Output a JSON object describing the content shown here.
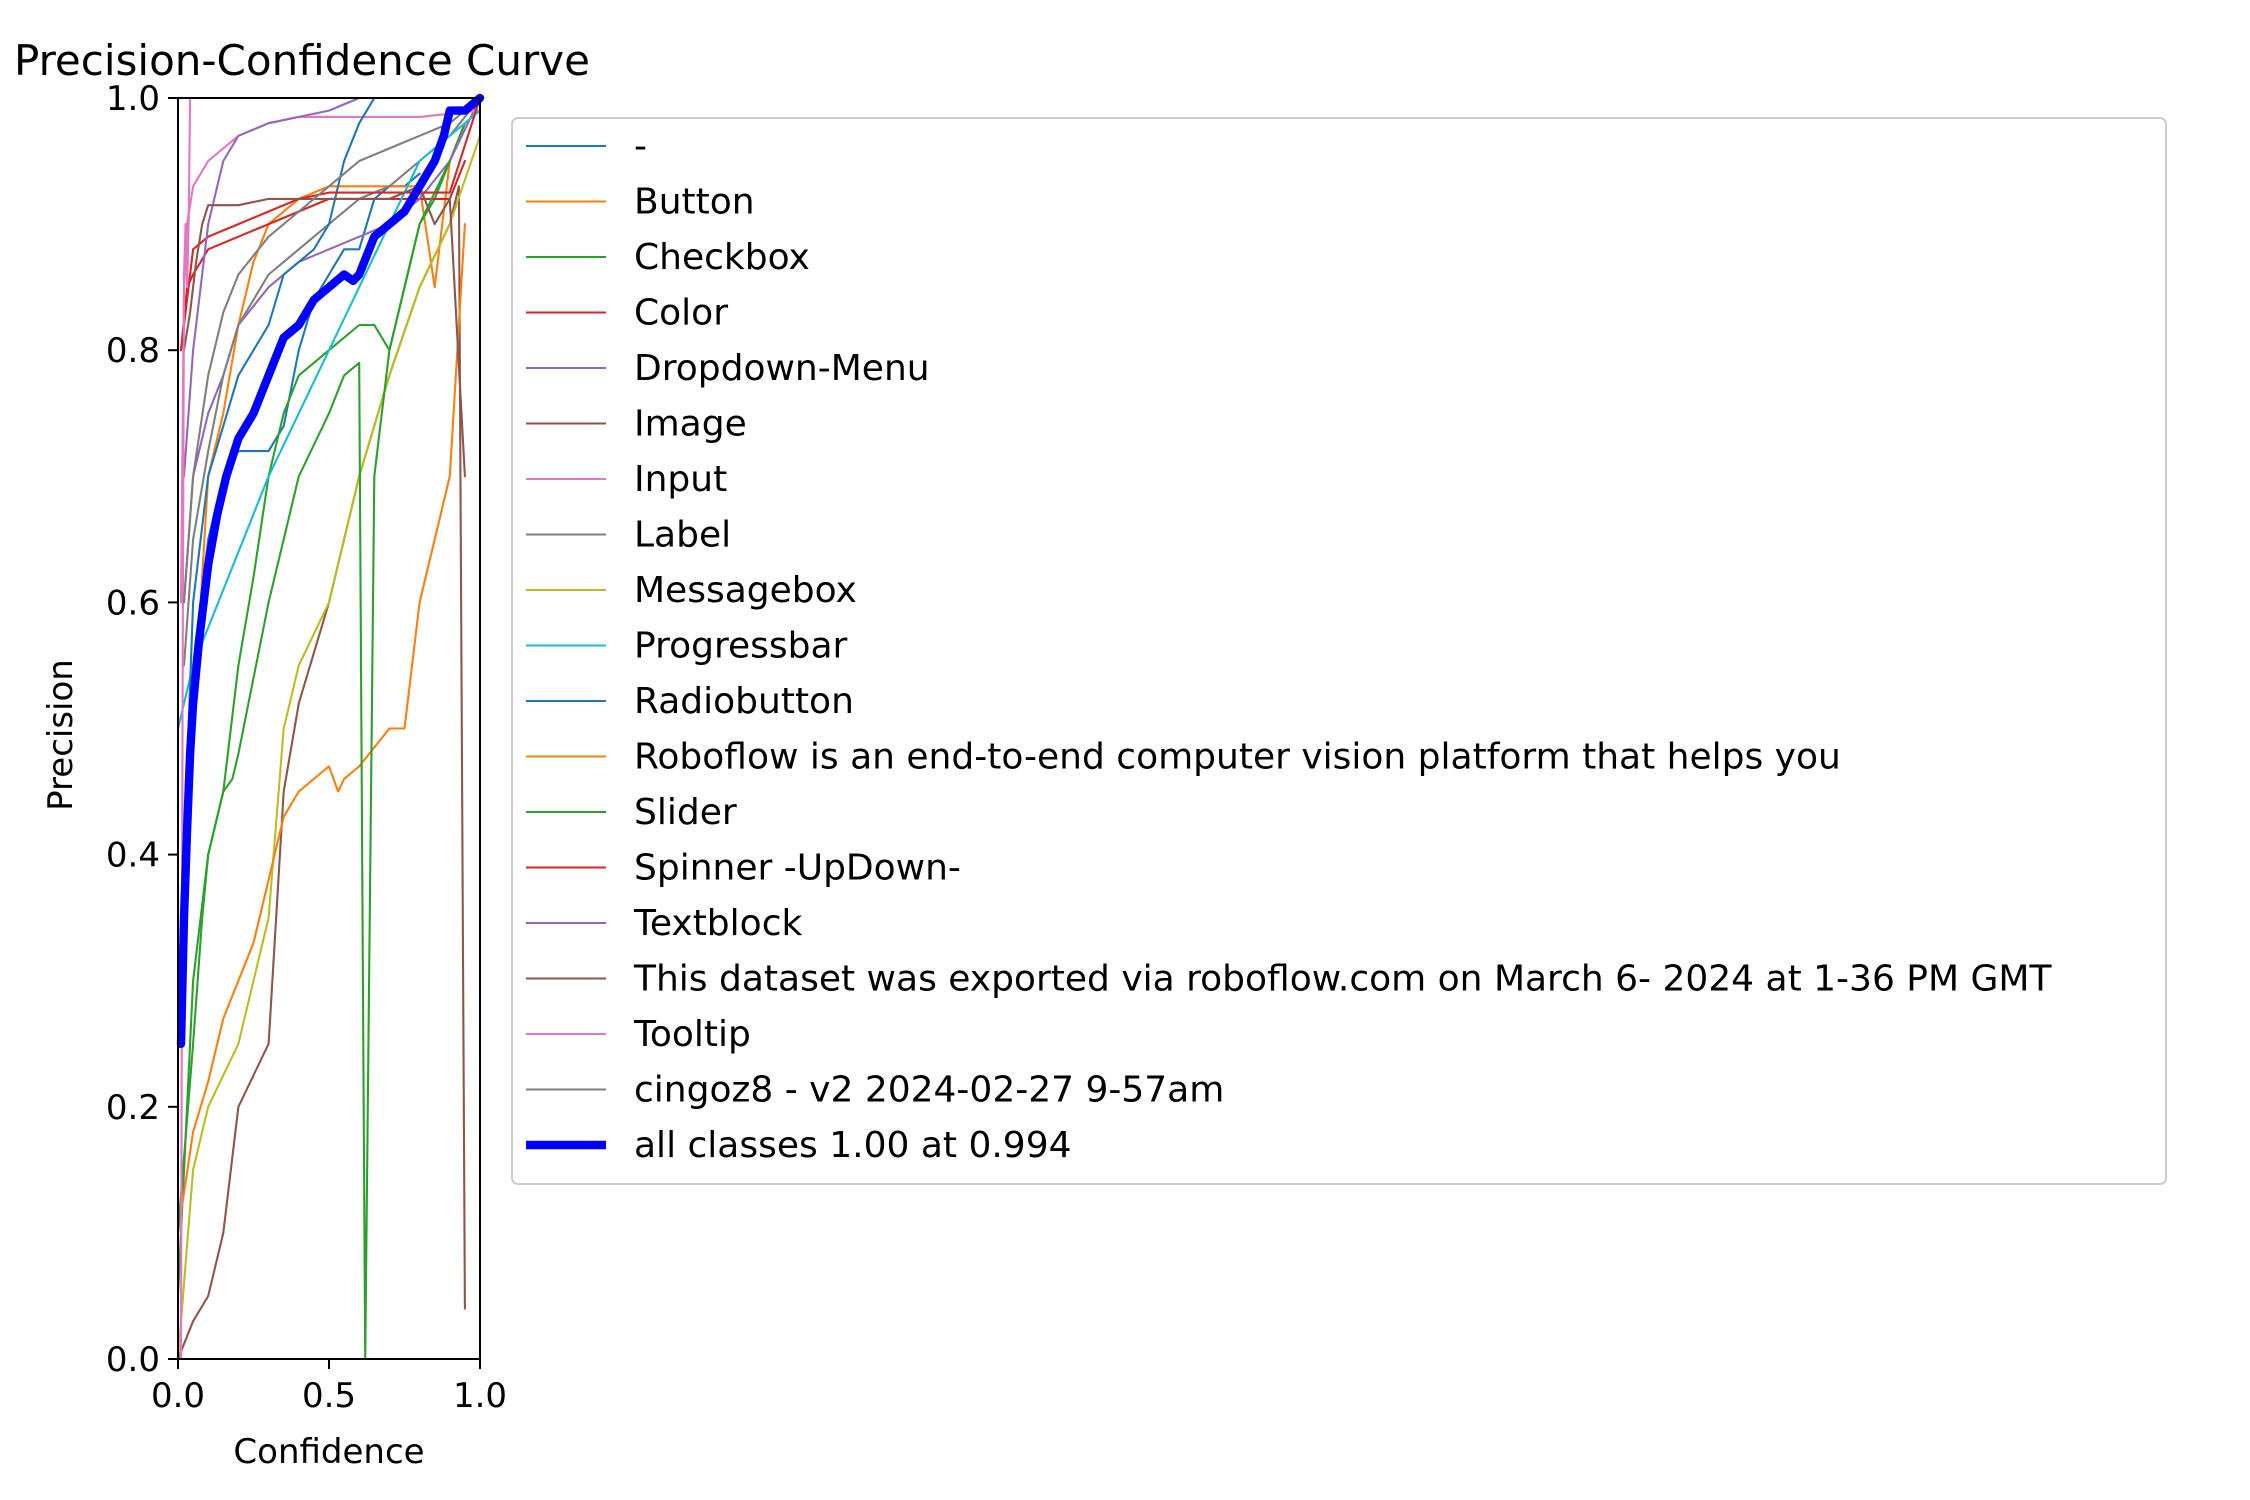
{
  "chart_data": {
    "type": "line",
    "title": "Precision-Confidence Curve",
    "xlabel": "Confidence",
    "ylabel": "Precision",
    "xlim": [
      0,
      1
    ],
    "ylim": [
      0,
      1
    ],
    "x_ticks": [
      "0.0",
      "0.5",
      "1.0"
    ],
    "y_ticks": [
      "0.0",
      "0.2",
      "0.4",
      "0.6",
      "0.8",
      "1.0"
    ],
    "grid": false,
    "legend_position": "right, outside plot",
    "series": [
      {
        "name": "-",
        "color": "#1f77b4",
        "width": 1.5,
        "points": [
          [
            0.02,
            0.35
          ],
          [
            0.05,
            0.55
          ],
          [
            0.1,
            0.65
          ],
          [
            0.15,
            0.7
          ],
          [
            0.2,
            0.72
          ],
          [
            0.3,
            0.72
          ],
          [
            0.35,
            0.74
          ],
          [
            0.4,
            0.8
          ],
          [
            0.45,
            0.84
          ],
          [
            0.5,
            0.86
          ],
          [
            0.55,
            0.88
          ],
          [
            0.6,
            0.88
          ],
          [
            0.65,
            0.92
          ],
          [
            0.7,
            0.93
          ],
          [
            0.75,
            0.93
          ],
          [
            0.8,
            0.94
          ]
        ]
      },
      {
        "name": "Button",
        "color": "#ff7f0e",
        "width": 1.5,
        "points": [
          [
            0.02,
            0.4
          ],
          [
            0.05,
            0.5
          ],
          [
            0.1,
            0.7
          ],
          [
            0.15,
            0.75
          ],
          [
            0.2,
            0.82
          ],
          [
            0.25,
            0.87
          ],
          [
            0.3,
            0.9
          ],
          [
            0.4,
            0.92
          ],
          [
            0.5,
            0.93
          ],
          [
            0.6,
            0.93
          ],
          [
            0.7,
            0.93
          ],
          [
            0.8,
            0.93
          ],
          [
            0.85,
            0.85
          ],
          [
            0.9,
            0.95
          ],
          [
            0.95,
            0.98
          ]
        ]
      },
      {
        "name": "Checkbox",
        "color": "#2ca02c",
        "width": 1.5,
        "points": [
          [
            0.0,
            0.05
          ],
          [
            0.05,
            0.3
          ],
          [
            0.1,
            0.4
          ],
          [
            0.15,
            0.45
          ],
          [
            0.2,
            0.55
          ],
          [
            0.25,
            0.62
          ],
          [
            0.3,
            0.7
          ],
          [
            0.35,
            0.75
          ],
          [
            0.4,
            0.78
          ],
          [
            0.5,
            0.8
          ],
          [
            0.6,
            0.82
          ],
          [
            0.65,
            0.82
          ],
          [
            0.7,
            0.8
          ],
          [
            0.75,
            0.85
          ],
          [
            0.8,
            0.9
          ],
          [
            0.85,
            0.92
          ],
          [
            0.9,
            0.95
          ],
          [
            0.95,
            0.98
          ]
        ]
      },
      {
        "name": "Color",
        "color": "#d62728",
        "width": 1.5,
        "points": [
          [
            0.01,
            0.8
          ],
          [
            0.03,
            0.85
          ],
          [
            0.05,
            0.86
          ],
          [
            0.1,
            0.88
          ],
          [
            0.2,
            0.89
          ],
          [
            0.3,
            0.9
          ],
          [
            0.4,
            0.91
          ],
          [
            0.5,
            0.92
          ],
          [
            0.6,
            0.92
          ],
          [
            0.7,
            0.92
          ],
          [
            0.8,
            0.92
          ],
          [
            0.9,
            0.92
          ],
          [
            0.95,
            0.95
          ]
        ]
      },
      {
        "name": "Dropdown-Menu",
        "color": "#9467bd",
        "width": 1.5,
        "points": [
          [
            0.02,
            0.6
          ],
          [
            0.05,
            0.7
          ],
          [
            0.1,
            0.75
          ],
          [
            0.15,
            0.78
          ],
          [
            0.2,
            0.82
          ],
          [
            0.3,
            0.85
          ],
          [
            0.4,
            0.87
          ],
          [
            0.5,
            0.88
          ],
          [
            0.6,
            0.89
          ],
          [
            0.7,
            0.9
          ],
          [
            0.8,
            0.92
          ],
          [
            0.9,
            0.95
          ],
          [
            1.0,
            1.0
          ]
        ]
      },
      {
        "name": "Image",
        "color": "#8c564b",
        "width": 1.5,
        "points": [
          [
            0.0,
            0.0
          ],
          [
            0.05,
            0.03
          ],
          [
            0.1,
            0.05
          ],
          [
            0.15,
            0.1
          ],
          [
            0.2,
            0.2
          ],
          [
            0.3,
            0.25
          ],
          [
            0.35,
            0.45
          ],
          [
            0.4,
            0.52
          ],
          [
            0.5,
            0.6
          ],
          [
            0.6,
            0.7
          ],
          [
            0.7,
            0.78
          ],
          [
            0.8,
            0.85
          ],
          [
            0.9,
            0.9
          ],
          [
            0.93,
            0.93
          ],
          [
            0.95,
            0.04
          ]
        ]
      },
      {
        "name": "Input",
        "color": "#e377c2",
        "width": 1.5,
        "points": [
          [
            0.01,
            0.6
          ],
          [
            0.02,
            0.85
          ],
          [
            0.03,
            0.9
          ],
          [
            0.05,
            0.93
          ],
          [
            0.1,
            0.95
          ],
          [
            0.2,
            0.97
          ],
          [
            0.3,
            0.98
          ],
          [
            0.4,
            0.985
          ],
          [
            0.5,
            0.985
          ],
          [
            0.6,
            0.985
          ],
          [
            0.8,
            0.985
          ],
          [
            1.0,
            0.99
          ]
        ]
      },
      {
        "name": "Label",
        "color": "#7f7f7f",
        "width": 1.5,
        "points": [
          [
            0.02,
            0.55
          ],
          [
            0.05,
            0.65
          ],
          [
            0.1,
            0.72
          ],
          [
            0.15,
            0.78
          ],
          [
            0.2,
            0.82
          ],
          [
            0.3,
            0.86
          ],
          [
            0.4,
            0.88
          ],
          [
            0.5,
            0.9
          ],
          [
            0.6,
            0.92
          ],
          [
            0.7,
            0.93
          ],
          [
            0.8,
            0.95
          ],
          [
            0.9,
            0.97
          ],
          [
            1.0,
            1.0
          ]
        ]
      },
      {
        "name": "Messagebox",
        "color": "#bcbd22",
        "width": 1.5,
        "points": [
          [
            0.0,
            0.0
          ],
          [
            0.05,
            0.15
          ],
          [
            0.1,
            0.2
          ],
          [
            0.2,
            0.25
          ],
          [
            0.3,
            0.35
          ],
          [
            0.35,
            0.5
          ],
          [
            0.4,
            0.55
          ],
          [
            0.5,
            0.6
          ],
          [
            0.6,
            0.7
          ],
          [
            0.7,
            0.78
          ],
          [
            0.8,
            0.85
          ],
          [
            0.9,
            0.9
          ],
          [
            1.0,
            0.97
          ]
        ]
      },
      {
        "name": "Progressbar",
        "color": "#17becf",
        "width": 1.5,
        "points": [
          [
            0.0,
            0.5
          ],
          [
            0.05,
            0.55
          ],
          [
            0.1,
            0.58
          ],
          [
            0.2,
            0.64
          ],
          [
            0.3,
            0.7
          ],
          [
            0.4,
            0.75
          ],
          [
            0.5,
            0.8
          ],
          [
            0.6,
            0.85
          ],
          [
            0.7,
            0.9
          ],
          [
            0.8,
            0.95
          ],
          [
            0.9,
            0.97
          ],
          [
            1.0,
            0.99
          ]
        ]
      },
      {
        "name": "Radiobutton",
        "color": "#1f77b4",
        "width": 1.5,
        "points": [
          [
            0.02,
            0.4
          ],
          [
            0.05,
            0.6
          ],
          [
            0.1,
            0.7
          ],
          [
            0.15,
            0.74
          ],
          [
            0.2,
            0.78
          ],
          [
            0.25,
            0.8
          ],
          [
            0.3,
            0.82
          ],
          [
            0.35,
            0.86
          ],
          [
            0.4,
            0.87
          ],
          [
            0.45,
            0.88
          ],
          [
            0.5,
            0.9
          ],
          [
            0.55,
            0.95
          ],
          [
            0.6,
            0.98
          ],
          [
            0.65,
            1.0
          ]
        ]
      },
      {
        "name": "Roboflow is an end-to-end computer vision platform that helps you",
        "color": "#ff7f0e",
        "width": 1.5,
        "points": [
          [
            0.0,
            0.1
          ],
          [
            0.05,
            0.18
          ],
          [
            0.1,
            0.22
          ],
          [
            0.15,
            0.27
          ],
          [
            0.2,
            0.3
          ],
          [
            0.25,
            0.33
          ],
          [
            0.3,
            0.38
          ],
          [
            0.35,
            0.43
          ],
          [
            0.4,
            0.45
          ],
          [
            0.5,
            0.47
          ],
          [
            0.53,
            0.45
          ],
          [
            0.55,
            0.46
          ],
          [
            0.6,
            0.47
          ],
          [
            0.7,
            0.5
          ],
          [
            0.75,
            0.5
          ],
          [
            0.8,
            0.6
          ],
          [
            0.85,
            0.65
          ],
          [
            0.9,
            0.7
          ],
          [
            0.95,
            0.9
          ]
        ]
      },
      {
        "name": "Slider",
        "color": "#2ca02c",
        "width": 1.5,
        "points": [
          [
            0.0,
            0.1
          ],
          [
            0.05,
            0.25
          ],
          [
            0.08,
            0.35
          ],
          [
            0.1,
            0.4
          ],
          [
            0.15,
            0.45
          ],
          [
            0.18,
            0.46
          ],
          [
            0.2,
            0.48
          ],
          [
            0.3,
            0.6
          ],
          [
            0.4,
            0.7
          ],
          [
            0.5,
            0.75
          ],
          [
            0.55,
            0.78
          ],
          [
            0.6,
            0.79
          ],
          [
            0.62,
            0.0
          ],
          [
            0.65,
            0.7
          ],
          [
            0.7,
            0.8
          ],
          [
            0.75,
            0.85
          ],
          [
            0.8,
            0.9
          ],
          [
            0.9,
            0.95
          ]
        ]
      },
      {
        "name": "Spinner -UpDown-",
        "color": "#d62728",
        "width": 1.5,
        "points": [
          [
            0.01,
            0.8
          ],
          [
            0.05,
            0.88
          ],
          [
            0.1,
            0.89
          ],
          [
            0.2,
            0.9
          ],
          [
            0.3,
            0.91
          ],
          [
            0.4,
            0.92
          ],
          [
            0.5,
            0.925
          ],
          [
            0.6,
            0.925
          ],
          [
            0.7,
            0.925
          ],
          [
            0.8,
            0.925
          ],
          [
            0.9,
            0.925
          ],
          [
            1.0,
            1.0
          ]
        ]
      },
      {
        "name": "Textblock",
        "color": "#9467bd",
        "width": 1.5,
        "points": [
          [
            0.02,
            0.7
          ],
          [
            0.05,
            0.8
          ],
          [
            0.1,
            0.9
          ],
          [
            0.15,
            0.95
          ],
          [
            0.2,
            0.97
          ],
          [
            0.3,
            0.98
          ],
          [
            0.4,
            0.985
          ],
          [
            0.5,
            0.99
          ],
          [
            0.6,
            1.0
          ]
        ]
      },
      {
        "name": "This dataset was exported via roboflow.com on March 6- 2024 at 1-36 PM GMT",
        "color": "#8c564b",
        "width": 1.5,
        "points": [
          [
            0.02,
            0.8
          ],
          [
            0.04,
            0.83
          ],
          [
            0.06,
            0.87
          ],
          [
            0.08,
            0.9
          ],
          [
            0.1,
            0.915
          ],
          [
            0.2,
            0.915
          ],
          [
            0.3,
            0.92
          ],
          [
            0.4,
            0.92
          ],
          [
            0.5,
            0.92
          ],
          [
            0.6,
            0.92
          ],
          [
            0.7,
            0.92
          ],
          [
            0.8,
            0.93
          ],
          [
            0.85,
            0.9
          ],
          [
            0.9,
            0.92
          ],
          [
            0.95,
            0.7
          ]
        ]
      },
      {
        "name": "Tooltip",
        "color": "#e377c2",
        "width": 1.5,
        "points": [
          [
            0.01,
            0.0
          ],
          [
            0.015,
            0.5
          ],
          [
            0.02,
            0.86
          ],
          [
            0.025,
            0.9
          ],
          [
            0.03,
            0.85
          ],
          [
            0.035,
            0.9
          ],
          [
            0.04,
            1.0
          ]
        ]
      },
      {
        "name": "cingoz8 - v2 2024-02-27 9-57am",
        "color": "#7f7f7f",
        "width": 1.5,
        "points": [
          [
            0.02,
            0.6
          ],
          [
            0.05,
            0.7
          ],
          [
            0.1,
            0.78
          ],
          [
            0.15,
            0.83
          ],
          [
            0.2,
            0.86
          ],
          [
            0.3,
            0.89
          ],
          [
            0.4,
            0.91
          ],
          [
            0.5,
            0.93
          ],
          [
            0.6,
            0.95
          ],
          [
            0.7,
            0.96
          ],
          [
            0.8,
            0.97
          ],
          [
            0.9,
            0.98
          ],
          [
            1.0,
            1.0
          ]
        ]
      },
      {
        "name": "all classes 1.00 at 0.994",
        "color": "#0000ff",
        "width": 6,
        "points": [
          [
            0.01,
            0.25
          ],
          [
            0.02,
            0.35
          ],
          [
            0.03,
            0.42
          ],
          [
            0.04,
            0.48
          ],
          [
            0.05,
            0.52
          ],
          [
            0.07,
            0.57
          ],
          [
            0.1,
            0.63
          ],
          [
            0.13,
            0.67
          ],
          [
            0.16,
            0.7
          ],
          [
            0.2,
            0.73
          ],
          [
            0.25,
            0.75
          ],
          [
            0.3,
            0.78
          ],
          [
            0.35,
            0.81
          ],
          [
            0.4,
            0.82
          ],
          [
            0.45,
            0.84
          ],
          [
            0.5,
            0.85
          ],
          [
            0.55,
            0.86
          ],
          [
            0.58,
            0.855
          ],
          [
            0.6,
            0.86
          ],
          [
            0.65,
            0.89
          ],
          [
            0.7,
            0.9
          ],
          [
            0.75,
            0.91
          ],
          [
            0.8,
            0.93
          ],
          [
            0.85,
            0.95
          ],
          [
            0.88,
            0.97
          ],
          [
            0.9,
            0.99
          ],
          [
            0.92,
            0.99
          ],
          [
            0.95,
            0.99
          ],
          [
            1.0,
            1.0
          ]
        ]
      }
    ]
  }
}
